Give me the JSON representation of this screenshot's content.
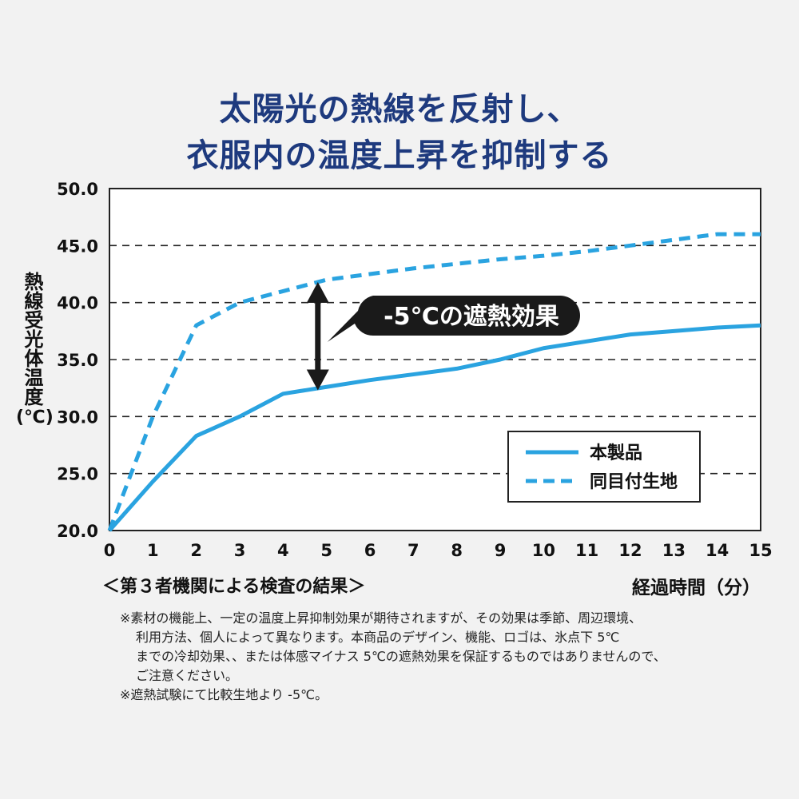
{
  "title": {
    "line1": "太陽光の熱線を反射し、",
    "line2": "衣服内の温度上昇を抑制する"
  },
  "y_axis_label": {
    "text": "熱線受光体温度",
    "unit": "(℃)"
  },
  "x_axis_label": "経過時間（分）",
  "source_label": "＜第３者機関による検査の結果＞",
  "annotation": "-5℃の遮熱効果",
  "notes": [
    "※素材の機能上、一定の温度上昇抑制効果が期待されますが、その効果は季節、周辺環境、",
    "利用方法、個人によって異なります。本商品のデザイン、機能、ロゴは、氷点下 5℃",
    "までの冷却効果、、または体感マイナス 5℃の遮熱効果を保証するものではありませんので、",
    "ご注意ください。",
    "※遮熱試験にて比較生地より -5℃。"
  ],
  "colors": {
    "title": "#1e3a7e",
    "series": "#2aa3e0",
    "annotation_bg": "#1a1a1a",
    "annotation_text": "#ffffff"
  },
  "chart_data": {
    "type": "line",
    "xlim": [
      0,
      15
    ],
    "ylim": [
      20,
      50
    ],
    "x_ticks": [
      0,
      1,
      2,
      3,
      4,
      5,
      6,
      7,
      8,
      9,
      10,
      11,
      12,
      13,
      14,
      15
    ],
    "y_ticks": [
      "20.0",
      "25.0",
      "30.0",
      "35.0",
      "40.0",
      "45.0",
      "50.0"
    ],
    "grid": "horizontal dashed",
    "legend_position": "bottom-right",
    "series": [
      {
        "name": "本製品",
        "style": "solid",
        "x": [
          0,
          1,
          2,
          3,
          4,
          5,
          6,
          7,
          8,
          9,
          10,
          11,
          12,
          13,
          14,
          15
        ],
        "y": [
          20.0,
          24.3,
          28.3,
          30.0,
          32.0,
          32.6,
          33.2,
          33.7,
          34.2,
          35.0,
          36.0,
          36.6,
          37.2,
          37.5,
          37.8,
          38.0
        ]
      },
      {
        "name": "同目付生地",
        "style": "dashed",
        "x": [
          0,
          0.5,
          1,
          1.5,
          2,
          3,
          4,
          5,
          6,
          7,
          8,
          9,
          10,
          11,
          12,
          13,
          14,
          15
        ],
        "y": [
          20.0,
          25.0,
          30.0,
          34.0,
          38.0,
          40.0,
          41.0,
          42.0,
          42.5,
          43.0,
          43.4,
          43.8,
          44.1,
          44.5,
          45.0,
          45.5,
          46.0,
          46.0
        ]
      }
    ]
  }
}
